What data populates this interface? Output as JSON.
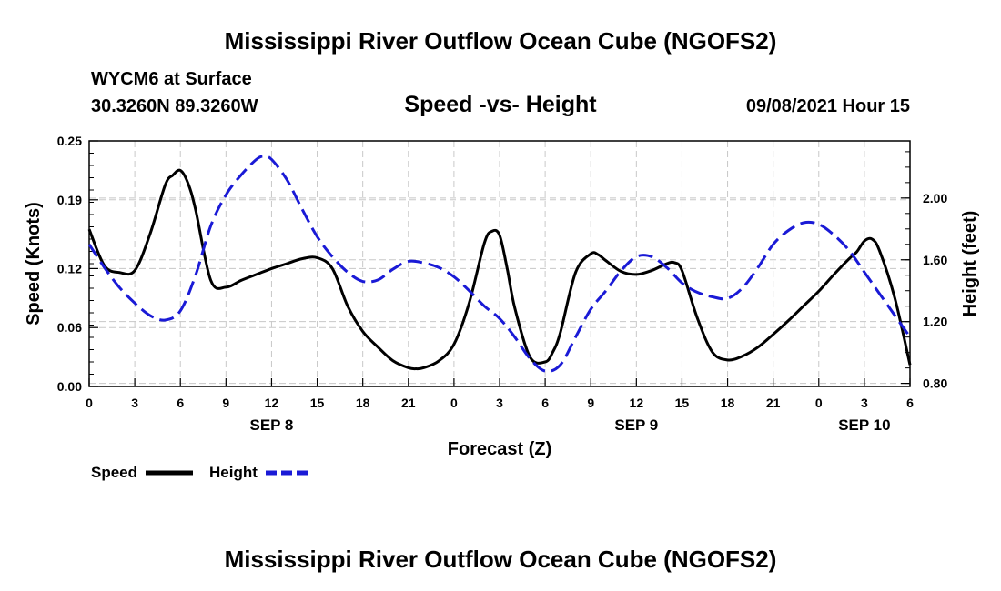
{
  "header": {
    "title": "Mississippi River Outflow Ocean Cube (NGOFS2)",
    "station": "WYCM6 at Surface",
    "coords": "30.3260N  89.3260W",
    "subtitle": "Speed -vs- Height",
    "datetime": "09/08/2021 Hour 15"
  },
  "footer": {
    "title": "Mississippi River Outflow Ocean Cube (NGOFS2)"
  },
  "chart_data": {
    "type": "line",
    "xlabel": "Forecast (Z)",
    "ylabel_left": "Speed (Knots)",
    "ylabel_right": "Height (feet)",
    "x_unit": "hours from Sep 8 00Z",
    "xlim": [
      0,
      54
    ],
    "ylim_left": [
      0,
      0.25
    ],
    "ylim_right": [
      0.78,
      2.37
    ],
    "x_ticks": [
      0,
      3,
      6,
      9,
      12,
      15,
      18,
      21,
      24,
      27,
      30,
      33,
      36,
      39,
      42,
      45,
      48,
      51,
      54
    ],
    "x_tick_labels": [
      "0",
      "3",
      "6",
      "9",
      "12",
      "15",
      "18",
      "21",
      "0",
      "3",
      "6",
      "9",
      "12",
      "15",
      "18",
      "21",
      "0",
      "3",
      "6"
    ],
    "date_labels": [
      {
        "x": 12,
        "label": "SEP 8"
      },
      {
        "x": 36,
        "label": "SEP 9"
      },
      {
        "x": 51,
        "label": "SEP 10"
      }
    ],
    "y_left_ticks": [
      0,
      0.06,
      0.12,
      0.19,
      0.25
    ],
    "y_left_tick_labels": [
      "0.00",
      "0.06",
      "0.12",
      "0.19",
      "0.25"
    ],
    "y_right_ticks": [
      0.8,
      1.2,
      1.6,
      2.0
    ],
    "y_right_tick_labels": [
      "0.80",
      "1.20",
      "1.60",
      "2.00"
    ],
    "grid": true,
    "legend": {
      "position": "bottom-left",
      "items": [
        {
          "label": "Speed",
          "color": "#000000",
          "dashed": false
        },
        {
          "label": "Height",
          "color": "#1a1ad6",
          "dashed": true
        }
      ]
    },
    "series": [
      {
        "name": "Speed",
        "axis": "left",
        "color": "#000000",
        "x": [
          0,
          1,
          2,
          3,
          4,
          5,
          5.5,
          6,
          6.5,
          7,
          8,
          9,
          10,
          11,
          12,
          13,
          14,
          15,
          16,
          17,
          18,
          19,
          20,
          21,
          21.5,
          22,
          23,
          24,
          25,
          26,
          26.5,
          27,
          27.5,
          28,
          29,
          30,
          30.5,
          31,
          32,
          33,
          33.5,
          34,
          35,
          36,
          37,
          38,
          38.5,
          39,
          40,
          41,
          42,
          43,
          44,
          45,
          46,
          47,
          48,
          49,
          50,
          50.5,
          51,
          51.5,
          52,
          53,
          54
        ],
        "y": [
          0.16,
          0.123,
          0.116,
          0.118,
          0.155,
          0.205,
          0.215,
          0.22,
          0.207,
          0.18,
          0.108,
          0.101,
          0.108,
          0.114,
          0.12,
          0.125,
          0.13,
          0.131,
          0.12,
          0.082,
          0.056,
          0.04,
          0.026,
          0.019,
          0.018,
          0.019,
          0.026,
          0.043,
          0.085,
          0.146,
          0.158,
          0.154,
          0.12,
          0.08,
          0.03,
          0.025,
          0.035,
          0.055,
          0.116,
          0.135,
          0.134,
          0.128,
          0.117,
          0.114,
          0.118,
          0.125,
          0.126,
          0.118,
          0.07,
          0.035,
          0.027,
          0.031,
          0.04,
          0.053,
          0.067,
          0.082,
          0.097,
          0.114,
          0.13,
          0.137,
          0.148,
          0.15,
          0.138,
          0.09,
          0.022
        ]
      },
      {
        "name": "Height",
        "axis": "right",
        "color": "#1a1ad6",
        "x": [
          0,
          1,
          2,
          3,
          4,
          5,
          6,
          7,
          8,
          9,
          10,
          11,
          11.5,
          12,
          13,
          14,
          15,
          16,
          17,
          18,
          19,
          20,
          21,
          22,
          23,
          24,
          25,
          26,
          27,
          28,
          29,
          30,
          31,
          32,
          33,
          34,
          35,
          36,
          37,
          38,
          39,
          40,
          41,
          42,
          43,
          44,
          45,
          46,
          47,
          48,
          49,
          50,
          51,
          52,
          53,
          54
        ],
        "y": [
          1.7,
          1.55,
          1.42,
          1.32,
          1.24,
          1.21,
          1.27,
          1.5,
          1.82,
          2.02,
          2.15,
          2.25,
          2.27,
          2.25,
          2.12,
          1.93,
          1.75,
          1.62,
          1.52,
          1.46,
          1.47,
          1.54,
          1.59,
          1.58,
          1.55,
          1.49,
          1.4,
          1.3,
          1.22,
          1.1,
          0.96,
          0.88,
          0.92,
          1.1,
          1.28,
          1.4,
          1.53,
          1.62,
          1.62,
          1.55,
          1.45,
          1.39,
          1.36,
          1.35,
          1.42,
          1.55,
          1.7,
          1.79,
          1.84,
          1.83,
          1.76,
          1.66,
          1.52,
          1.38,
          1.24,
          1.1
        ]
      }
    ]
  }
}
